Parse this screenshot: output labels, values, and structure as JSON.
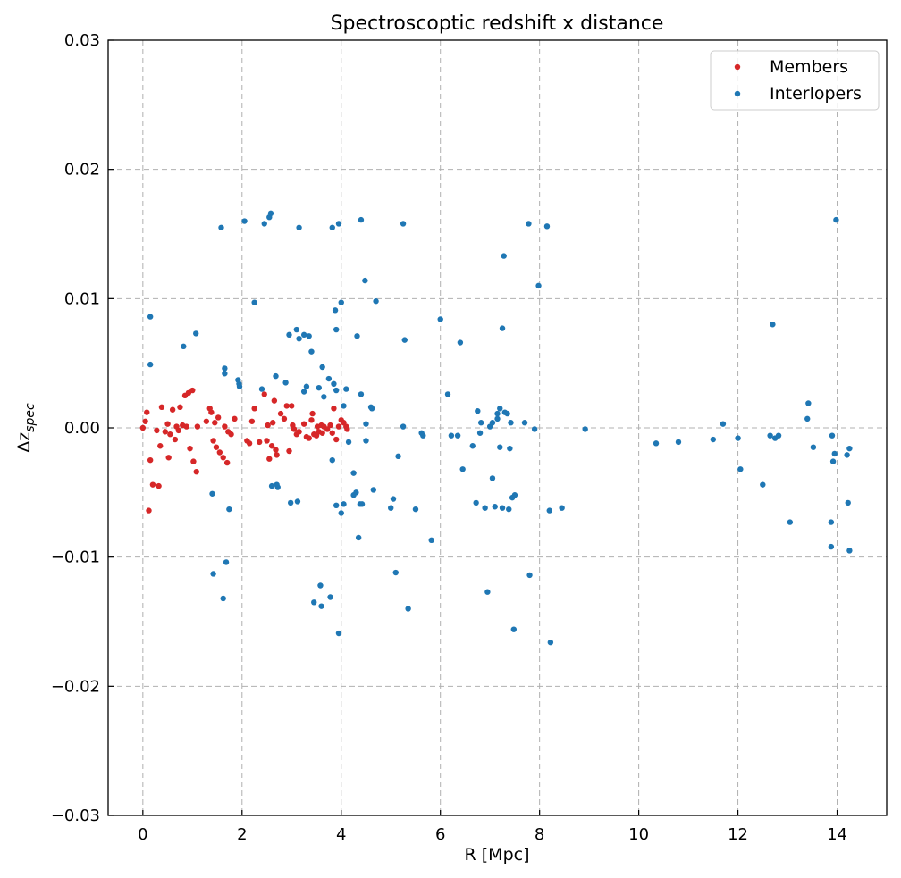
{
  "chart_data": {
    "type": "scatter",
    "title": "Spectroscoptic redshift x distance",
    "xlabel": "R [Mpc]",
    "ylabel": "Δz_spec",
    "ylabel_main": "Δz",
    "ylabel_sub": "spec",
    "xlim": [
      -0.7,
      15.0
    ],
    "ylim": [
      -0.03,
      0.03
    ],
    "xticks": [
      0,
      2,
      4,
      6,
      8,
      10,
      12,
      14
    ],
    "xtick_labels": [
      "0",
      "2",
      "4",
      "6",
      "8",
      "10",
      "12",
      "14"
    ],
    "yticks": [
      -0.03,
      -0.02,
      -0.01,
      0.0,
      0.01,
      0.02,
      0.03
    ],
    "ytick_labels": [
      "−0.03",
      "−0.02",
      "−0.01",
      "0.00",
      "0.01",
      "0.02",
      "0.03"
    ],
    "grid": true,
    "legend_position": "top-right",
    "series": [
      {
        "name": "Members",
        "color": "#d62728",
        "points": [
          [
            0.0,
            0.0
          ],
          [
            0.05,
            0.0005
          ],
          [
            0.08,
            0.0012
          ],
          [
            0.12,
            -0.0064
          ],
          [
            0.15,
            -0.0025
          ],
          [
            0.2,
            -0.0044
          ],
          [
            0.28,
            -0.0002
          ],
          [
            0.32,
            -0.0045
          ],
          [
            0.35,
            -0.0014
          ],
          [
            0.38,
            0.0016
          ],
          [
            0.45,
            -0.0003
          ],
          [
            0.5,
            0.0003
          ],
          [
            0.52,
            -0.0023
          ],
          [
            0.55,
            -0.0005
          ],
          [
            0.6,
            0.0014
          ],
          [
            0.65,
            -0.0009
          ],
          [
            0.68,
            0.0001
          ],
          [
            0.72,
            -0.0002
          ],
          [
            0.75,
            0.0016
          ],
          [
            0.8,
            0.0002
          ],
          [
            0.85,
            0.0025
          ],
          [
            0.88,
            0.0001
          ],
          [
            0.92,
            0.0027
          ],
          [
            0.95,
            -0.0016
          ],
          [
            1.0,
            0.0029
          ],
          [
            1.02,
            -0.0026
          ],
          [
            1.08,
            -0.0034
          ],
          [
            1.1,
            0.0001
          ],
          [
            1.28,
            0.0005
          ],
          [
            1.35,
            0.0015
          ],
          [
            1.38,
            0.0012
          ],
          [
            1.42,
            -0.001
          ],
          [
            1.45,
            0.0004
          ],
          [
            1.48,
            -0.0015
          ],
          [
            1.52,
            0.0008
          ],
          [
            1.55,
            -0.0019
          ],
          [
            1.62,
            -0.0023
          ],
          [
            1.65,
            0.0001
          ],
          [
            1.7,
            -0.0027
          ],
          [
            1.72,
            -0.0003
          ],
          [
            1.78,
            -0.0005
          ],
          [
            1.85,
            0.0007
          ],
          [
            2.1,
            -0.001
          ],
          [
            2.15,
            -0.0012
          ],
          [
            2.2,
            0.0005
          ],
          [
            2.25,
            0.0015
          ],
          [
            2.35,
            -0.0011
          ],
          [
            2.45,
            0.0026
          ],
          [
            2.5,
            -0.001
          ],
          [
            2.52,
            0.0002
          ],
          [
            2.55,
            -0.0024
          ],
          [
            2.6,
            -0.0014
          ],
          [
            2.62,
            0.0004
          ],
          [
            2.65,
            0.0021
          ],
          [
            2.68,
            -0.0017
          ],
          [
            2.7,
            -0.0021
          ],
          [
            2.78,
            0.0011
          ],
          [
            2.85,
            0.0007
          ],
          [
            2.9,
            0.0017
          ],
          [
            2.95,
            -0.0018
          ],
          [
            3.0,
            0.0017
          ],
          [
            3.02,
            0.0002
          ],
          [
            3.05,
            -0.0001
          ],
          [
            3.1,
            -0.0005
          ],
          [
            3.15,
            -0.0003
          ],
          [
            3.25,
            0.0003
          ],
          [
            3.3,
            -0.0007
          ],
          [
            3.35,
            -0.0008
          ],
          [
            3.4,
            0.0006
          ],
          [
            3.42,
            0.0011
          ],
          [
            3.45,
            -0.0005
          ],
          [
            3.5,
            -0.0006
          ],
          [
            3.52,
            0.0001
          ],
          [
            3.55,
            -0.0003
          ],
          [
            3.6,
            0.0002
          ],
          [
            3.62,
            -0.0004
          ],
          [
            3.65,
            0.0001
          ],
          [
            3.72,
            -0.0001
          ],
          [
            3.78,
            0.0002
          ],
          [
            3.82,
            -0.0004
          ],
          [
            3.85,
            0.0015
          ],
          [
            3.9,
            -0.0009
          ],
          [
            3.95,
            0.0001
          ],
          [
            4.0,
            0.0006
          ],
          [
            4.05,
            0.0004
          ],
          [
            4.1,
            0.0001
          ],
          [
            4.12,
            -0.0001
          ]
        ]
      },
      {
        "name": "Interlopers",
        "color": "#1f77b4",
        "points": [
          [
            0.15,
            0.0086
          ],
          [
            0.15,
            0.0049
          ],
          [
            0.82,
            0.0063
          ],
          [
            1.07,
            0.0073
          ],
          [
            1.4,
            -0.0051
          ],
          [
            1.42,
            -0.0113
          ],
          [
            1.58,
            0.0155
          ],
          [
            1.62,
            -0.0132
          ],
          [
            1.65,
            0.0046
          ],
          [
            1.65,
            0.0042
          ],
          [
            1.68,
            -0.0104
          ],
          [
            1.74,
            -0.0063
          ],
          [
            1.92,
            0.0037
          ],
          [
            1.94,
            0.0034
          ],
          [
            1.95,
            0.0032
          ],
          [
            2.05,
            0.016
          ],
          [
            2.25,
            0.0097
          ],
          [
            2.4,
            0.003
          ],
          [
            2.45,
            0.0158
          ],
          [
            2.55,
            0.0163
          ],
          [
            2.58,
            0.0166
          ],
          [
            2.6,
            -0.0045
          ],
          [
            2.68,
            0.004
          ],
          [
            2.7,
            -0.0044
          ],
          [
            2.72,
            -0.0046
          ],
          [
            2.88,
            0.0035
          ],
          [
            2.95,
            0.0072
          ],
          [
            2.98,
            -0.0058
          ],
          [
            3.1,
            0.0076
          ],
          [
            3.12,
            -0.0057
          ],
          [
            3.15,
            0.0155
          ],
          [
            3.15,
            0.0069
          ],
          [
            3.25,
            0.0072
          ],
          [
            3.25,
            0.0028
          ],
          [
            3.3,
            0.0032
          ],
          [
            3.35,
            0.0071
          ],
          [
            3.4,
            0.0059
          ],
          [
            3.45,
            -0.0135
          ],
          [
            3.55,
            0.0031
          ],
          [
            3.58,
            -0.0122
          ],
          [
            3.6,
            -0.0138
          ],
          [
            3.62,
            0.0047
          ],
          [
            3.65,
            0.0024
          ],
          [
            3.75,
            0.0038
          ],
          [
            3.78,
            -0.0131
          ],
          [
            3.82,
            -0.0025
          ],
          [
            3.82,
            0.0155
          ],
          [
            3.85,
            0.0034
          ],
          [
            3.88,
            0.0091
          ],
          [
            3.9,
            0.0076
          ],
          [
            3.9,
            0.0029
          ],
          [
            3.9,
            -0.006
          ],
          [
            3.95,
            -0.0159
          ],
          [
            3.95,
            0.0158
          ],
          [
            4.0,
            0.0097
          ],
          [
            4.0,
            -0.0066
          ],
          [
            4.05,
            0.0017
          ],
          [
            4.05,
            -0.0059
          ],
          [
            4.1,
            0.003
          ],
          [
            4.15,
            -0.0011
          ],
          [
            4.25,
            -0.0052
          ],
          [
            4.25,
            -0.0035
          ],
          [
            4.3,
            -0.005
          ],
          [
            4.32,
            0.0071
          ],
          [
            4.35,
            -0.0085
          ],
          [
            4.38,
            -0.0059
          ],
          [
            4.4,
            0.0161
          ],
          [
            4.4,
            0.0026
          ],
          [
            4.42,
            -0.0059
          ],
          [
            4.48,
            0.0114
          ],
          [
            4.5,
            0.0003
          ],
          [
            4.5,
            -0.001
          ],
          [
            4.6,
            0.0016
          ],
          [
            4.62,
            0.0015
          ],
          [
            4.65,
            -0.0048
          ],
          [
            4.7,
            0.0098
          ],
          [
            5.0,
            -0.0062
          ],
          [
            5.05,
            -0.0055
          ],
          [
            5.1,
            -0.0112
          ],
          [
            5.15,
            -0.0022
          ],
          [
            5.25,
            0.0001
          ],
          [
            5.25,
            0.0158
          ],
          [
            5.28,
            0.0068
          ],
          [
            5.35,
            -0.014
          ],
          [
            5.5,
            -0.0063
          ],
          [
            5.62,
            -0.0004
          ],
          [
            5.65,
            -0.0006
          ],
          [
            5.82,
            -0.0087
          ],
          [
            6.0,
            0.0084
          ],
          [
            6.15,
            0.0026
          ],
          [
            6.22,
            -0.0006
          ],
          [
            6.35,
            -0.0006
          ],
          [
            6.4,
            0.0066
          ],
          [
            6.45,
            -0.0032
          ],
          [
            6.65,
            -0.0014
          ],
          [
            6.72,
            -0.0058
          ],
          [
            6.75,
            0.0013
          ],
          [
            6.8,
            -0.0004
          ],
          [
            6.82,
            0.0004
          ],
          [
            6.9,
            -0.0062
          ],
          [
            6.95,
            -0.0127
          ],
          [
            7.0,
            0.0001
          ],
          [
            7.05,
            -0.0039
          ],
          [
            7.05,
            0.0004
          ],
          [
            7.1,
            -0.0061
          ],
          [
            7.15,
            0.0011
          ],
          [
            7.15,
            0.0007
          ],
          [
            7.2,
            0.0015
          ],
          [
            7.2,
            -0.0015
          ],
          [
            7.25,
            -0.0062
          ],
          [
            7.25,
            0.0077
          ],
          [
            7.28,
            0.0133
          ],
          [
            7.3,
            0.0012
          ],
          [
            7.35,
            0.0011
          ],
          [
            7.38,
            -0.0063
          ],
          [
            7.4,
            -0.0016
          ],
          [
            7.42,
            0.0004
          ],
          [
            7.45,
            -0.0054
          ],
          [
            7.48,
            -0.0156
          ],
          [
            7.5,
            -0.0052
          ],
          [
            7.7,
            0.0004
          ],
          [
            7.78,
            0.0158
          ],
          [
            7.8,
            -0.0114
          ],
          [
            7.9,
            -0.0001
          ],
          [
            7.98,
            0.011
          ],
          [
            8.15,
            0.0156
          ],
          [
            8.2,
            -0.0064
          ],
          [
            8.22,
            -0.0166
          ],
          [
            8.45,
            -0.0062
          ],
          [
            8.92,
            -0.0001
          ],
          [
            10.35,
            -0.0012
          ],
          [
            10.8,
            -0.0011
          ],
          [
            11.5,
            -0.0009
          ],
          [
            11.7,
            0.0003
          ],
          [
            12.0,
            -0.0008
          ],
          [
            12.05,
            -0.0032
          ],
          [
            12.5,
            -0.0044
          ],
          [
            12.65,
            -0.0006
          ],
          [
            12.7,
            0.008
          ],
          [
            12.75,
            -0.0008
          ],
          [
            12.82,
            -0.0006
          ],
          [
            13.05,
            -0.0073
          ],
          [
            13.4,
            0.0007
          ],
          [
            13.42,
            0.0019
          ],
          [
            13.52,
            -0.0015
          ],
          [
            13.88,
            -0.0073
          ],
          [
            13.88,
            -0.0092
          ],
          [
            13.9,
            -0.0006
          ],
          [
            13.92,
            -0.0026
          ],
          [
            13.95,
            -0.002
          ],
          [
            13.98,
            0.0161
          ],
          [
            14.2,
            -0.0021
          ],
          [
            14.22,
            -0.0058
          ],
          [
            14.25,
            -0.0016
          ],
          [
            14.25,
            -0.0095
          ]
        ]
      }
    ]
  }
}
